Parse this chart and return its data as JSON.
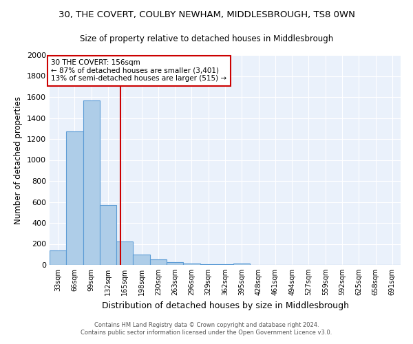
{
  "title": "30, THE COVERT, COULBY NEWHAM, MIDDLESBROUGH, TS8 0WN",
  "subtitle": "Size of property relative to detached houses in Middlesbrough",
  "xlabel": "Distribution of detached houses by size in Middlesbrough",
  "ylabel": "Number of detached properties",
  "bar_color": "#aecde8",
  "bar_edge_color": "#5b9bd5",
  "bg_color": "#eaf1fb",
  "grid_color": "#ffffff",
  "categories": [
    "33sqm",
    "66sqm",
    "99sqm",
    "132sqm",
    "165sqm",
    "198sqm",
    "230sqm",
    "263sqm",
    "296sqm",
    "329sqm",
    "362sqm",
    "395sqm",
    "428sqm",
    "461sqm",
    "494sqm",
    "527sqm",
    "559sqm",
    "592sqm",
    "625sqm",
    "658sqm",
    "691sqm"
  ],
  "values": [
    140,
    1270,
    1570,
    570,
    220,
    100,
    55,
    25,
    15,
    5,
    5,
    15,
    0,
    0,
    0,
    0,
    0,
    0,
    0,
    0,
    0
  ],
  "bin_edges": [
    16.5,
    49.5,
    82.5,
    115.5,
    148.5,
    181.5,
    214.5,
    247.5,
    280.5,
    313.5,
    346.5,
    379.5,
    412.5,
    445.5,
    478.5,
    511.5,
    544.5,
    577.5,
    610.5,
    643.5,
    676.5,
    709.5
  ],
  "red_line_x": 156,
  "ylim": [
    0,
    2000
  ],
  "yticks": [
    0,
    200,
    400,
    600,
    800,
    1000,
    1200,
    1400,
    1600,
    1800,
    2000
  ],
  "annotation_text": "30 THE COVERT: 156sqm\n← 87% of detached houses are smaller (3,401)\n13% of semi-detached houses are larger (515) →",
  "annotation_box_color": "#ffffff",
  "annotation_box_edge": "#cc0000",
  "red_line_color": "#cc0000",
  "footer_line1": "Contains HM Land Registry data © Crown copyright and database right 2024.",
  "footer_line2": "Contains public sector information licensed under the Open Government Licence v3.0."
}
